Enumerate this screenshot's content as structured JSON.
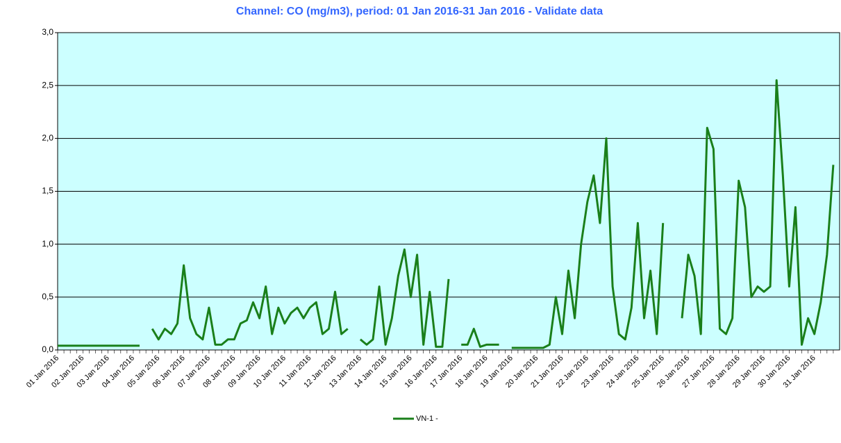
{
  "chart_data": {
    "type": "line",
    "title": "Channel: CO (mg/m3), period: 01 Jan 2016-31 Jan 2016 - Validate data",
    "categories": [
      "01 Jan 2016",
      null,
      null,
      null,
      "02 Jan 2016",
      null,
      null,
      null,
      "03 Jan 2016",
      null,
      null,
      null,
      "04 Jan 2016",
      null,
      null,
      null,
      "05 Jan 2016",
      null,
      null,
      null,
      "06 Jan 2016",
      null,
      null,
      null,
      "07 Jan 2016",
      null,
      null,
      null,
      "08 Jan 2016",
      null,
      null,
      null,
      "09 Jan 2016",
      null,
      null,
      null,
      "10 Jan 2016",
      null,
      null,
      null,
      "11 Jan 2016",
      null,
      null,
      null,
      "12 Jan 2016",
      null,
      null,
      null,
      "13 Jan 2016",
      null,
      null,
      null,
      "14 Jan 2016",
      null,
      null,
      null,
      "15 Jan 2016",
      null,
      null,
      null,
      "16 Jan 2016",
      null,
      null,
      null,
      "17 Jan 2016",
      null,
      null,
      null,
      "18 Jan 2016",
      null,
      null,
      null,
      "19 Jan 2016",
      null,
      null,
      null,
      "20 Jan 2016",
      null,
      null,
      null,
      "21 Jan 2016",
      null,
      null,
      null,
      "22 Jan 2016",
      null,
      null,
      null,
      "23 Jan 2016",
      null,
      null,
      null,
      "24 Jan 2016",
      null,
      null,
      null,
      "25 Jan 2016",
      null,
      null,
      null,
      "26 Jan 2016",
      null,
      null,
      null,
      "27 Jan 2016",
      null,
      null,
      null,
      "28 Jan 2016",
      null,
      null,
      null,
      "29 Jan 2016",
      null,
      null,
      null,
      "30 Jan 2016",
      null,
      null,
      null,
      "31 Jan 2016",
      null,
      null,
      null
    ],
    "series": [
      {
        "name": "VN-1 -",
        "color": "#1a7f1a",
        "values": [
          0.04,
          0.04,
          0.04,
          0.04,
          0.04,
          0.04,
          0.04,
          0.04,
          0.04,
          0.04,
          0.04,
          0.04,
          0.04,
          0.04,
          null,
          0.2,
          0.1,
          0.2,
          0.15,
          0.25,
          0.8,
          0.3,
          0.15,
          0.1,
          0.4,
          0.05,
          0.05,
          0.1,
          0.1,
          0.25,
          0.28,
          0.45,
          0.3,
          0.6,
          0.15,
          0.4,
          0.25,
          0.35,
          0.4,
          0.3,
          0.4,
          0.45,
          0.15,
          0.2,
          0.55,
          0.15,
          0.2,
          null,
          0.1,
          0.05,
          0.1,
          0.6,
          0.05,
          0.3,
          0.7,
          0.95,
          0.5,
          0.9,
          0.05,
          0.55,
          0.03,
          0.03,
          0.67,
          null,
          0.05,
          0.05,
          0.2,
          0.03,
          0.05,
          0.05,
          0.05,
          null,
          0.02,
          0.02,
          0.02,
          0.02,
          0.02,
          0.02,
          0.05,
          0.5,
          0.15,
          0.75,
          0.3,
          1.0,
          1.4,
          1.65,
          1.2,
          2.0,
          0.6,
          0.15,
          0.1,
          0.4,
          1.2,
          0.3,
          0.75,
          0.15,
          1.2,
          null,
          null,
          0.3,
          0.9,
          0.7,
          0.15,
          2.1,
          1.9,
          0.2,
          0.15,
          0.3,
          1.6,
          1.35,
          0.5,
          0.6,
          0.55,
          0.6,
          2.55,
          1.65,
          0.6,
          1.35,
          0.05,
          0.3,
          0.15,
          0.45,
          0.9,
          1.75
        ]
      }
    ],
    "ylim": [
      0,
      3
    ],
    "yticks": [
      {
        "value": 0,
        "label": "0,0"
      },
      {
        "value": 0.5,
        "label": "0,5"
      },
      {
        "value": 1,
        "label": "1,0"
      },
      {
        "value": 1.5,
        "label": "1,5"
      },
      {
        "value": 2,
        "label": "2,0"
      },
      {
        "value": 2.5,
        "label": "2,5"
      },
      {
        "value": 3,
        "label": "3,0"
      }
    ],
    "grid": true,
    "legend": "bottom",
    "plot_background": "#ccffff"
  }
}
